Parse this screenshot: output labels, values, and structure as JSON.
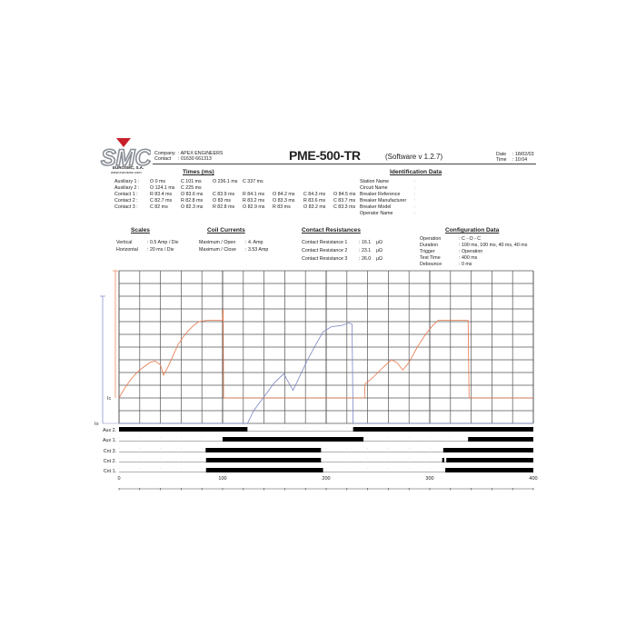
{
  "header": {
    "logo_text": "SMC",
    "logo_sub1": "EUROSMC, S.A.",
    "logo_sub2": "www.eurosmc.com",
    "company_label": "Company",
    "company_value": ": APEX ENGINEERS",
    "contact_label": "Contact",
    "contact_value": ": 01630 661313",
    "title": "PME-500-TR",
    "software": "(Software v 1.2.7)",
    "date_label": "Date",
    "date_value": ": 18/02/03",
    "time_label": "Time",
    "time_value": ": 10:04"
  },
  "times": {
    "heading": "Times (ms)",
    "rows": [
      {
        "label": "Auxiliary 1 :",
        "values": [
          "O 0 ms",
          "C 101 ms",
          "O 236.1 ms",
          "C 337 ms"
        ]
      },
      {
        "label": "Auxiliary 2 :",
        "values": [
          "O 124.1 ms",
          "C 225 ms"
        ]
      },
      {
        "label": "Contact 1 :",
        "values": [
          "R 83.4 ms",
          "O 83.6 ms",
          "C 83.9 ms",
          "R 84.1 ms",
          "O 84.2 ms",
          "C 84.3 ms",
          "O 84.5 ms"
        ]
      },
      {
        "label": "Contact 2 :",
        "values": [
          "C 82.7 ms",
          "R 82.8 ms",
          "O 83 ms",
          "R 83.2 ms",
          "O 83.3 ms",
          "R 83.6 ms",
          "C 83.7 ms"
        ]
      },
      {
        "label": "Contact 3 :",
        "values": [
          "C 82 ms",
          "O 82.3 ms",
          "R 82.8 ms",
          "O 82.9 ms",
          "R 83 ms",
          "O 83.2 ms",
          "C 83.3 ms"
        ]
      }
    ]
  },
  "identification": {
    "heading": "Identification Data",
    "fields": [
      "Station Name",
      "Circuit Name",
      "Breaker Reference",
      "Breaker Manufacturer",
      "Breaker Model",
      "Operator Name"
    ]
  },
  "scales": {
    "heading": "Scales",
    "rows": [
      {
        "label": "Vertical",
        "value": ": 0.5 Amp / Div"
      },
      {
        "label": "Horizontal",
        "value": ": 20 ms / Div"
      }
    ]
  },
  "coil": {
    "heading": "Coil Currents",
    "rows": [
      {
        "label": "Maximum / Open",
        "value": ": 4. Amp"
      },
      {
        "label": "Maximum / Close",
        "value": ": 3.53 Amp"
      }
    ]
  },
  "resistances": {
    "heading": "Contact Resistances",
    "rows": [
      {
        "label": "Contact Resistance 1",
        "value": ": 16.1",
        "unit": "μΩ"
      },
      {
        "label": "Contact Resistance 2",
        "value": ": 23.1",
        "unit": "μΩ"
      },
      {
        "label": "Contact Resistance 3",
        "value": ": 26.0",
        "unit": "μΩ"
      }
    ]
  },
  "config": {
    "heading": "Configuration Data",
    "rows": [
      {
        "label": "Operation",
        "value": ": C - O - C"
      },
      {
        "label": "Duration",
        "value": ": 100 ms, 100 ms, 40 ms, 40 ms"
      },
      {
        "label": "Trigger",
        "value": ": Operation"
      },
      {
        "label": "Test Time",
        "value": ": 400 ms"
      },
      {
        "label": "Debounce",
        "value": ": 0 ms"
      }
    ]
  },
  "chart_data": {
    "type": "line",
    "xlim": [
      0,
      400
    ],
    "xticks": [
      "0",
      "100",
      "200",
      "300",
      "400"
    ],
    "x_grid_step": 20,
    "y_divisions": 12,
    "y_unit_per_div": 0.5,
    "grid": true,
    "colors": {
      "close_coil": "#e8774a",
      "open_coil": "#7d86c4",
      "grid": "#555555",
      "digital": "#000000"
    },
    "analog_labels": [
      "Ic",
      "Io"
    ],
    "series": [
      {
        "name": "Ic",
        "baseline": "Ic",
        "points": [
          [
            0,
            0
          ],
          [
            5,
            0.35
          ],
          [
            10,
            0.65
          ],
          [
            15,
            0.9
          ],
          [
            20,
            1.1
          ],
          [
            25,
            1.25
          ],
          [
            30,
            1.4
          ],
          [
            35,
            1.45
          ],
          [
            40,
            1.3
          ],
          [
            43,
            0.9
          ],
          [
            47,
            1.2
          ],
          [
            52,
            1.65
          ],
          [
            57,
            2.1
          ],
          [
            62,
            2.4
          ],
          [
            67,
            2.65
          ],
          [
            72,
            2.85
          ],
          [
            77,
            3.0
          ],
          [
            85,
            3.05
          ],
          [
            100,
            3.05
          ],
          [
            100.5,
            3.5
          ],
          [
            101,
            0
          ],
          [
            237,
            0
          ],
          [
            237.5,
            0.55
          ],
          [
            245,
            0.8
          ],
          [
            255,
            1.2
          ],
          [
            263,
            1.5
          ],
          [
            268,
            1.4
          ],
          [
            274,
            1.1
          ],
          [
            280,
            1.4
          ],
          [
            288,
            2.0
          ],
          [
            296,
            2.5
          ],
          [
            303,
            2.85
          ],
          [
            308,
            3.05
          ],
          [
            337,
            3.05
          ],
          [
            338,
            0
          ],
          [
            400,
            0
          ]
        ]
      },
      {
        "name": "Io",
        "baseline": "Io",
        "points": [
          [
            0,
            0
          ],
          [
            124,
            0
          ],
          [
            130,
            0.5
          ],
          [
            140,
            1.05
          ],
          [
            150,
            1.6
          ],
          [
            159,
            1.95
          ],
          [
            168,
            1.3
          ],
          [
            175,
            1.9
          ],
          [
            182,
            2.5
          ],
          [
            190,
            3.1
          ],
          [
            197,
            3.6
          ],
          [
            205,
            3.8
          ],
          [
            215,
            3.85
          ],
          [
            222,
            3.95
          ],
          [
            225,
            3.9
          ],
          [
            226,
            0
          ],
          [
            400,
            0
          ]
        ]
      }
    ],
    "digital": [
      {
        "name": "Aux 2.",
        "high": [
          [
            0,
            124
          ],
          [
            226,
            400
          ]
        ]
      },
      {
        "name": "Aux 1.",
        "high": [
          [
            100,
            236
          ],
          [
            337,
            400
          ]
        ]
      },
      {
        "name": "Cnt 3.",
        "high": [
          [
            83.6,
            195
          ],
          [
            313,
            400
          ]
        ]
      },
      {
        "name": "Cnt 2.",
        "high": [
          [
            84,
            195
          ],
          [
            312,
            314
          ],
          [
            316,
            400
          ]
        ]
      },
      {
        "name": "Cnt 1.",
        "high": [
          [
            84,
            197
          ],
          [
            315,
            400
          ]
        ]
      }
    ]
  }
}
